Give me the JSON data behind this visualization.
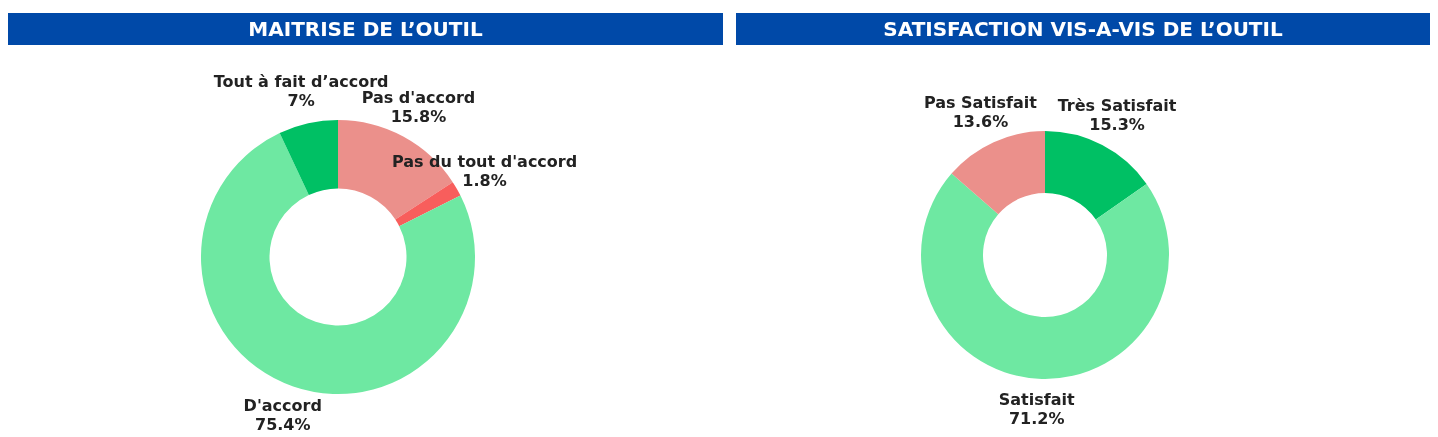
{
  "chart_data": [
    {
      "type": "donut",
      "title": "MAITRISE DE L’OUTIL",
      "categories": [
        "Pas d'accord",
        "Pas du tout d'accord",
        "D'accord",
        "Tout à fait d’accord"
      ],
      "values": [
        15.8,
        1.8,
        75.4,
        7
      ],
      "colors": [
        "#eb908b",
        "#f85e5c",
        "#6ee8a2",
        "#00c064"
      ],
      "value_labels": [
        "15.8%",
        "1.8%",
        "75.4%",
        "7%"
      ],
      "legend": false
    },
    {
      "type": "donut",
      "title": "SATISFACTION VIS-A-VIS DE L’OUTIL",
      "categories": [
        "Très Satisfait",
        "Satisfait",
        "Pas Satisfait"
      ],
      "values": [
        15.3,
        71.2,
        13.6
      ],
      "colors": [
        "#00c064",
        "#6ee8a2",
        "#eb908b"
      ],
      "value_labels": [
        "15.3%",
        "71.2%",
        "13.6%"
      ],
      "legend": false
    }
  ]
}
